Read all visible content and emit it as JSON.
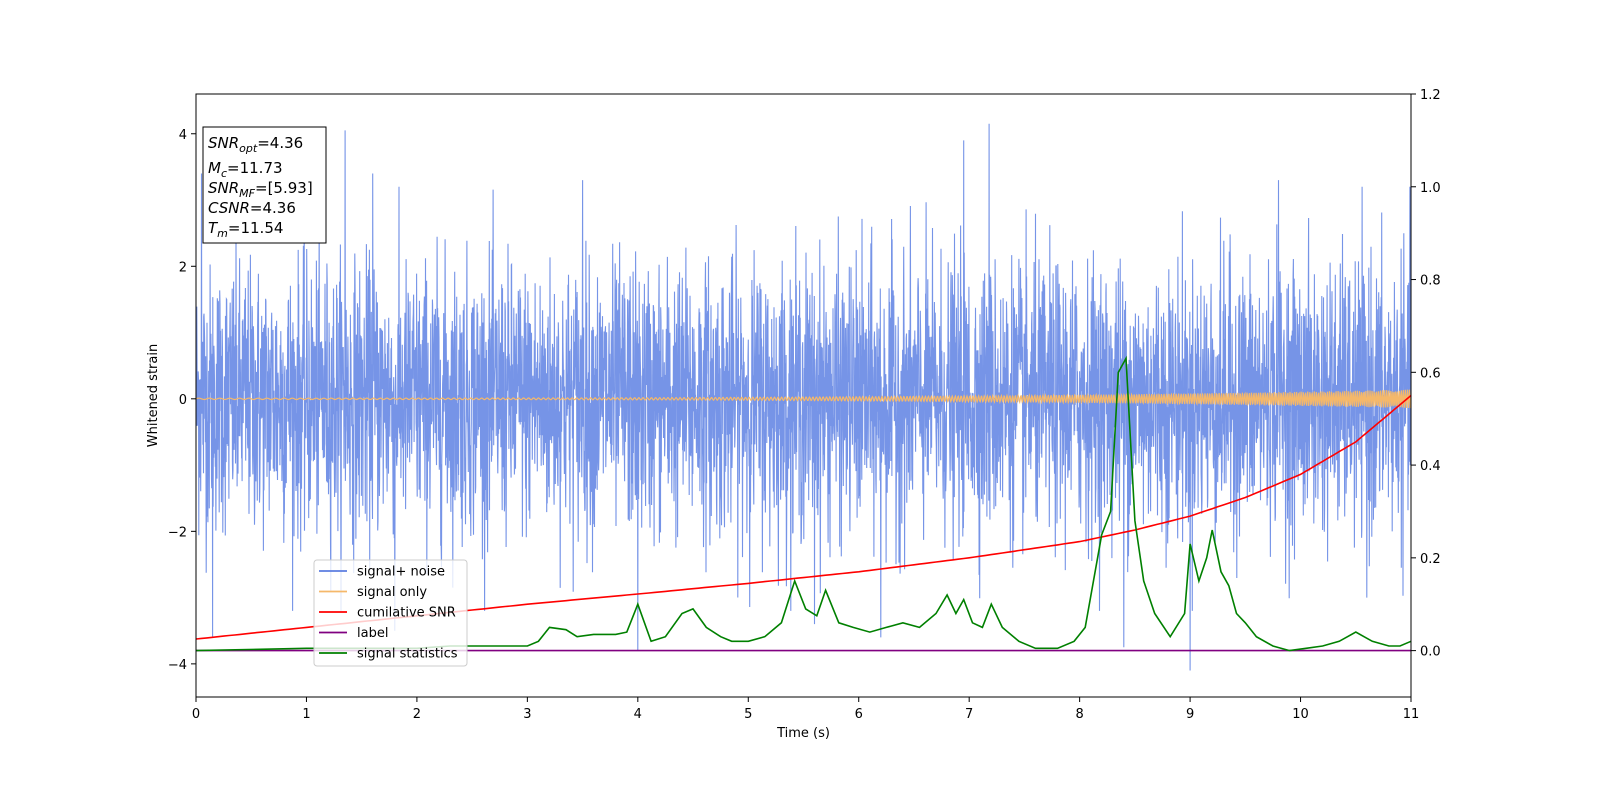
{
  "chart_data": {
    "type": "line",
    "xlabel": "Time (s)",
    "ylabel": "Whitened strain",
    "xlim": [
      0,
      11
    ],
    "ylim_left": [
      -4.5,
      4.6
    ],
    "ylim_right": [
      -0.1,
      1.2
    ],
    "x_ticks": [
      0,
      1,
      2,
      3,
      4,
      5,
      6,
      7,
      8,
      9,
      10,
      11
    ],
    "x_tick_labels": [
      "0",
      "1",
      "2",
      "3",
      "4",
      "5",
      "6",
      "7",
      "8",
      "9",
      "10",
      "11"
    ],
    "y_left_ticks": [
      4,
      2,
      0,
      -2,
      -4
    ],
    "y_left_tick_labels": [
      "4",
      "2",
      "0",
      "−2",
      "−4"
    ],
    "y_right_ticks": [
      1.2,
      1.0,
      0.8,
      0.6,
      0.4,
      0.2,
      0.0
    ],
    "y_right_tick_labels": [
      "1.2",
      "1.0",
      "0.8",
      "0.6",
      "0.4",
      "0.2",
      "0.0"
    ],
    "info_box": {
      "snr_opt": {
        "base": "SNR",
        "sub": "opt",
        "value": "=4.36"
      },
      "mc": {
        "base": "M",
        "sub": "c",
        "value": "=11.73"
      },
      "snr_mf": {
        "base": "SNR",
        "sub": "MF",
        "value": "=[5.93]"
      },
      "csnr": {
        "base": "CSNR",
        "value": "=4.36"
      },
      "tm": {
        "base": "T",
        "sub": "m",
        "value": "=11.54"
      }
    },
    "legend_placement": "lower-left",
    "legend": [
      {
        "label": "signal+ noise",
        "color": "#5b7de0"
      },
      {
        "label": "signal only",
        "color": "#f5b86a"
      },
      {
        "label": "cumilative SNR",
        "color": "#ff0000"
      },
      {
        "label": "label",
        "color": "#800080"
      },
      {
        "label": "signal statistics",
        "color": "#008000"
      }
    ],
    "series": [
      {
        "name": "signal+ noise",
        "axis": "left",
        "color": "#6f8ee6",
        "noise_band_sigma": 1.0,
        "noise_extremes": [
          [
            1.35,
            4.05
          ],
          [
            1.6,
            3.4
          ],
          [
            0.05,
            3.4
          ],
          [
            7.18,
            4.15
          ],
          [
            9.0,
            -4.1
          ],
          [
            6.95,
            3.9
          ],
          [
            9.8,
            3.3
          ],
          [
            4.0,
            -3.8
          ],
          [
            8.4,
            -3.75
          ],
          [
            5.6,
            -3.4
          ],
          [
            6.2,
            -3.6
          ],
          [
            10.6,
            -3.0
          ],
          [
            0.15,
            -3.6
          ],
          [
            1.8,
            -3.5
          ],
          [
            3.5,
            3.3
          ]
        ]
      },
      {
        "name": "signal only",
        "axis": "left",
        "color": "#f5b86a",
        "amplitude_start": 0.01,
        "amplitude_end": 0.14
      },
      {
        "name": "cumilative SNR",
        "axis": "right",
        "color": "#ff0000",
        "x": [
          0,
          1,
          2,
          3,
          4,
          5,
          6,
          7,
          8,
          8.5,
          9,
          9.5,
          10,
          10.5,
          11
        ],
        "y": [
          0.025,
          0.05,
          0.075,
          0.1,
          0.122,
          0.145,
          0.17,
          0.2,
          0.235,
          0.26,
          0.29,
          0.33,
          0.38,
          0.45,
          0.55
        ]
      },
      {
        "name": "label",
        "axis": "right",
        "color": "#800080",
        "x": [
          0,
          11
        ],
        "y": [
          0.0,
          0.0
        ]
      },
      {
        "name": "signal statistics",
        "axis": "right",
        "color": "#008000",
        "x": [
          0,
          1,
          2,
          2.3,
          2.6,
          3,
          3.1,
          3.2,
          3.35,
          3.45,
          3.6,
          3.8,
          3.9,
          4.0,
          4.12,
          4.25,
          4.4,
          4.5,
          4.62,
          4.75,
          4.85,
          5.0,
          5.15,
          5.3,
          5.42,
          5.52,
          5.62,
          5.7,
          5.82,
          5.95,
          6.1,
          6.25,
          6.4,
          6.55,
          6.7,
          6.8,
          6.88,
          6.95,
          7.03,
          7.12,
          7.2,
          7.3,
          7.45,
          7.6,
          7.8,
          7.95,
          8.05,
          8.2,
          8.28,
          8.35,
          8.42,
          8.5,
          8.58,
          8.68,
          8.82,
          8.95,
          9.0,
          9.08,
          9.15,
          9.2,
          9.28,
          9.35,
          9.42,
          9.5,
          9.6,
          9.75,
          9.9,
          10.05,
          10.2,
          10.35,
          10.5,
          10.65,
          10.8,
          10.9,
          11.0
        ],
        "y": [
          0.0,
          0.005,
          0.005,
          0.01,
          0.01,
          0.01,
          0.02,
          0.05,
          0.045,
          0.03,
          0.035,
          0.035,
          0.04,
          0.1,
          0.02,
          0.03,
          0.08,
          0.09,
          0.05,
          0.03,
          0.02,
          0.02,
          0.03,
          0.06,
          0.15,
          0.09,
          0.075,
          0.13,
          0.06,
          0.05,
          0.04,
          0.05,
          0.06,
          0.05,
          0.08,
          0.12,
          0.08,
          0.11,
          0.06,
          0.05,
          0.1,
          0.05,
          0.02,
          0.005,
          0.005,
          0.02,
          0.05,
          0.25,
          0.3,
          0.6,
          0.63,
          0.28,
          0.15,
          0.08,
          0.03,
          0.08,
          0.23,
          0.15,
          0.2,
          0.26,
          0.17,
          0.14,
          0.08,
          0.06,
          0.03,
          0.01,
          0.0,
          0.005,
          0.01,
          0.02,
          0.04,
          0.02,
          0.01,
          0.01,
          0.02
        ]
      }
    ]
  }
}
